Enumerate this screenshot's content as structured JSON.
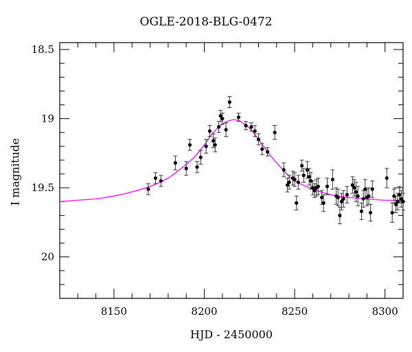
{
  "chart_data": {
    "type": "scatter",
    "title": "OGLE-2018-BLG-0472",
    "xlabel": "HJD - 2450000",
    "ylabel": "I magnitude",
    "xlim": [
      8120,
      8310
    ],
    "ylim": [
      20.3,
      18.45
    ],
    "y_inverted": true,
    "x_ticks": [
      8150,
      8200,
      8250,
      8300
    ],
    "y_ticks": [
      18.5,
      19,
      19.5,
      20
    ],
    "x_tick_labels": [
      "8150",
      "8200",
      "8250",
      "8300"
    ],
    "y_tick_labels": [
      "18.5",
      "19",
      "19.5",
      "20"
    ],
    "grid": false,
    "legend": "none",
    "colors": {
      "model": "#ff00ff",
      "points": "#000000",
      "axes": "#000000"
    },
    "model_curve": {
      "x": [
        8120,
        8130,
        8140,
        8150,
        8160,
        8170,
        8180,
        8190,
        8195,
        8200,
        8205,
        8210,
        8215,
        8218,
        8220,
        8225,
        8230,
        8235,
        8240,
        8245,
        8250,
        8260,
        8270,
        8280,
        8290,
        8300,
        8310
      ],
      "y": [
        19.6,
        19.59,
        19.58,
        19.56,
        19.53,
        19.49,
        19.43,
        19.33,
        19.27,
        19.19,
        19.1,
        19.04,
        19.01,
        19.01,
        19.02,
        19.07,
        19.15,
        19.24,
        19.32,
        19.39,
        19.45,
        19.51,
        19.55,
        19.57,
        19.58,
        19.59,
        19.59
      ]
    },
    "series": [
      {
        "x": [
          8169,
          8173,
          8176,
          8184,
          8190,
          8192,
          8196,
          8198,
          8201,
          8203,
          8205,
          8206,
          8208,
          8209,
          8210,
          8212,
          8214,
          8219,
          8223,
          8226,
          8228,
          8230,
          8232,
          8235,
          8239,
          8244,
          8246,
          8247,
          8249,
          8250,
          8251,
          8252,
          8254,
          8255,
          8257,
          8258,
          8259,
          8260,
          8261,
          8262,
          8263,
          8265,
          8266,
          8268,
          8271,
          8273,
          8274,
          8275,
          8276,
          8277,
          8279,
          8282,
          8283,
          8284,
          8285,
          8287,
          8288,
          8289,
          8290,
          8291,
          8292,
          8293,
          8301,
          8304,
          8305,
          8306,
          8307,
          8308,
          8309,
          8310
        ],
        "y": [
          19.51,
          19.43,
          19.45,
          19.32,
          19.36,
          19.19,
          19.35,
          19.28,
          19.2,
          19.09,
          19.16,
          19.19,
          19.06,
          18.98,
          19.0,
          19.08,
          18.88,
          18.99,
          19.05,
          19.06,
          19.09,
          19.15,
          19.22,
          19.24,
          19.1,
          19.37,
          19.48,
          19.46,
          19.43,
          19.44,
          19.61,
          19.46,
          19.34,
          19.41,
          19.37,
          19.42,
          19.45,
          19.5,
          19.52,
          19.5,
          19.49,
          19.57,
          19.61,
          19.49,
          19.44,
          19.56,
          19.57,
          19.7,
          19.6,
          19.58,
          19.55,
          19.48,
          19.5,
          19.53,
          19.56,
          19.67,
          19.58,
          19.51,
          19.57,
          19.56,
          19.68,
          19.51,
          19.43,
          19.68,
          19.56,
          19.62,
          19.6,
          19.55,
          19.58,
          19.6
        ],
        "yerr": [
          0.04,
          0.04,
          0.04,
          0.05,
          0.05,
          0.04,
          0.04,
          0.05,
          0.05,
          0.04,
          0.05,
          0.05,
          0.04,
          0.04,
          0.04,
          0.05,
          0.04,
          0.03,
          0.03,
          0.03,
          0.04,
          0.04,
          0.04,
          0.03,
          0.05,
          0.05,
          0.05,
          0.05,
          0.05,
          0.05,
          0.05,
          0.05,
          0.04,
          0.05,
          0.06,
          0.06,
          0.06,
          0.05,
          0.05,
          0.06,
          0.06,
          0.05,
          0.06,
          0.06,
          0.07,
          0.06,
          0.06,
          0.06,
          0.06,
          0.06,
          0.06,
          0.06,
          0.06,
          0.07,
          0.07,
          0.06,
          0.06,
          0.07,
          0.06,
          0.06,
          0.06,
          0.06,
          0.07,
          0.07,
          0.05,
          0.06,
          0.06,
          0.06,
          0.06,
          0.06
        ]
      }
    ]
  }
}
